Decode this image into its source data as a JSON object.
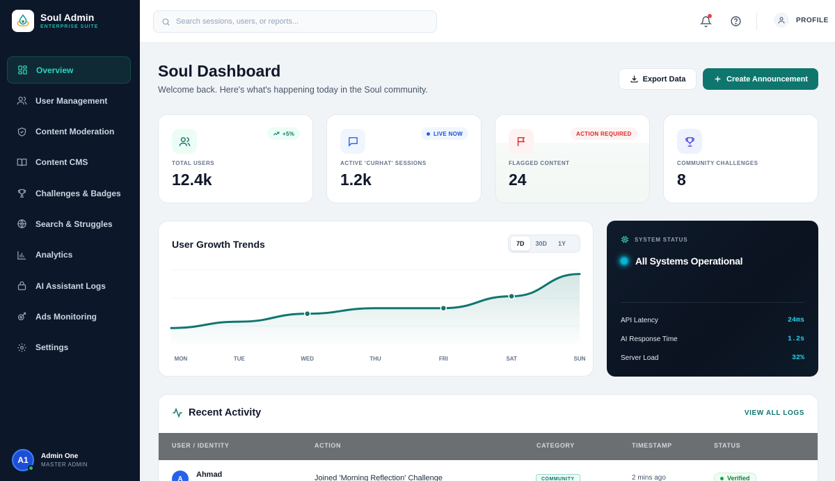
{
  "brand": {
    "name": "Soul Admin",
    "subtitle": "ENTERPRISE SUITE"
  },
  "sidebar": {
    "items": [
      {
        "label": "Overview",
        "icon": "grid-icon",
        "active": true
      },
      {
        "label": "User Management",
        "icon": "users-icon"
      },
      {
        "label": "Content Moderation",
        "icon": "shield-icon"
      },
      {
        "label": "Content CMS",
        "icon": "book-icon"
      },
      {
        "label": "Challenges & Badges",
        "icon": "trophy-icon"
      },
      {
        "label": "Search & Struggles",
        "icon": "globe-icon"
      },
      {
        "label": "Analytics",
        "icon": "bar-chart-icon"
      },
      {
        "label": "AI Assistant Logs",
        "icon": "lock-icon"
      },
      {
        "label": "Ads Monitoring",
        "icon": "target-icon"
      },
      {
        "label": "Settings",
        "icon": "gear-icon"
      }
    ],
    "user": {
      "initials": "A1",
      "name": "Admin One",
      "role": "MASTER ADMIN"
    }
  },
  "topbar": {
    "search_placeholder": "Search sessions, users, or reports...",
    "profile_label": "PROFILE"
  },
  "header": {
    "title": "Soul Dashboard",
    "subtitle": "Welcome back. Here's what's happening today in the Soul community.",
    "export_label": "Export Data",
    "create_label": "Create Announcement"
  },
  "stats": [
    {
      "label": "TOTAL USERS",
      "value": "12.4k",
      "badge": "+5%",
      "icon": "users-icon"
    },
    {
      "label": "ACTIVE 'CURHAT' SESSIONS",
      "value": "1.2k",
      "badge": "LIVE NOW",
      "icon": "message-icon"
    },
    {
      "label": "FLAGGED CONTENT",
      "value": "24",
      "badge": "ACTION REQUIRED",
      "icon": "flag-icon"
    },
    {
      "label": "COMMUNITY CHALLENGES",
      "value": "8",
      "badge": "",
      "icon": "trophy-icon"
    }
  ],
  "growth": {
    "title": "User Growth Trends",
    "ranges": [
      "7D",
      "30D",
      "1Y"
    ],
    "active_range": "7D"
  },
  "chart_data": {
    "type": "area",
    "title": "User Growth Trends",
    "categories": [
      "MON",
      "TUE",
      "WED",
      "THU",
      "FRI",
      "SAT",
      "SUN"
    ],
    "series": [
      {
        "values": [
          20,
          28,
          38,
          45,
          45,
          60,
          88
        ]
      }
    ],
    "ylim": [
      0,
      100
    ],
    "grid": true,
    "color": "#0f766e"
  },
  "system": {
    "heading": "SYSTEM STATUS",
    "status": "All Systems Operational",
    "metrics": [
      {
        "name": "API Latency",
        "value": "24ms"
      },
      {
        "name": "AI Response Time",
        "value": "1.2s"
      },
      {
        "name": "Server Load",
        "value": "32%"
      }
    ]
  },
  "activity": {
    "title": "Recent Activity",
    "view_all": "VIEW ALL LOGS",
    "columns": [
      "USER / IDENTITY",
      "ACTION",
      "CATEGORY",
      "TIMESTAMP",
      "STATUS"
    ],
    "rows": [
      {
        "initial": "A",
        "user": "Ahmad",
        "action": "Joined 'Morning Reflection' Challenge",
        "category": "COMMUNITY",
        "timestamp": "2 mins ago",
        "status": "Verified"
      }
    ]
  },
  "colors": {
    "accent": "#0f766e",
    "sidebar_bg": "#0c1729",
    "danger": "#ef4444",
    "cyan": "#22d3ee"
  }
}
